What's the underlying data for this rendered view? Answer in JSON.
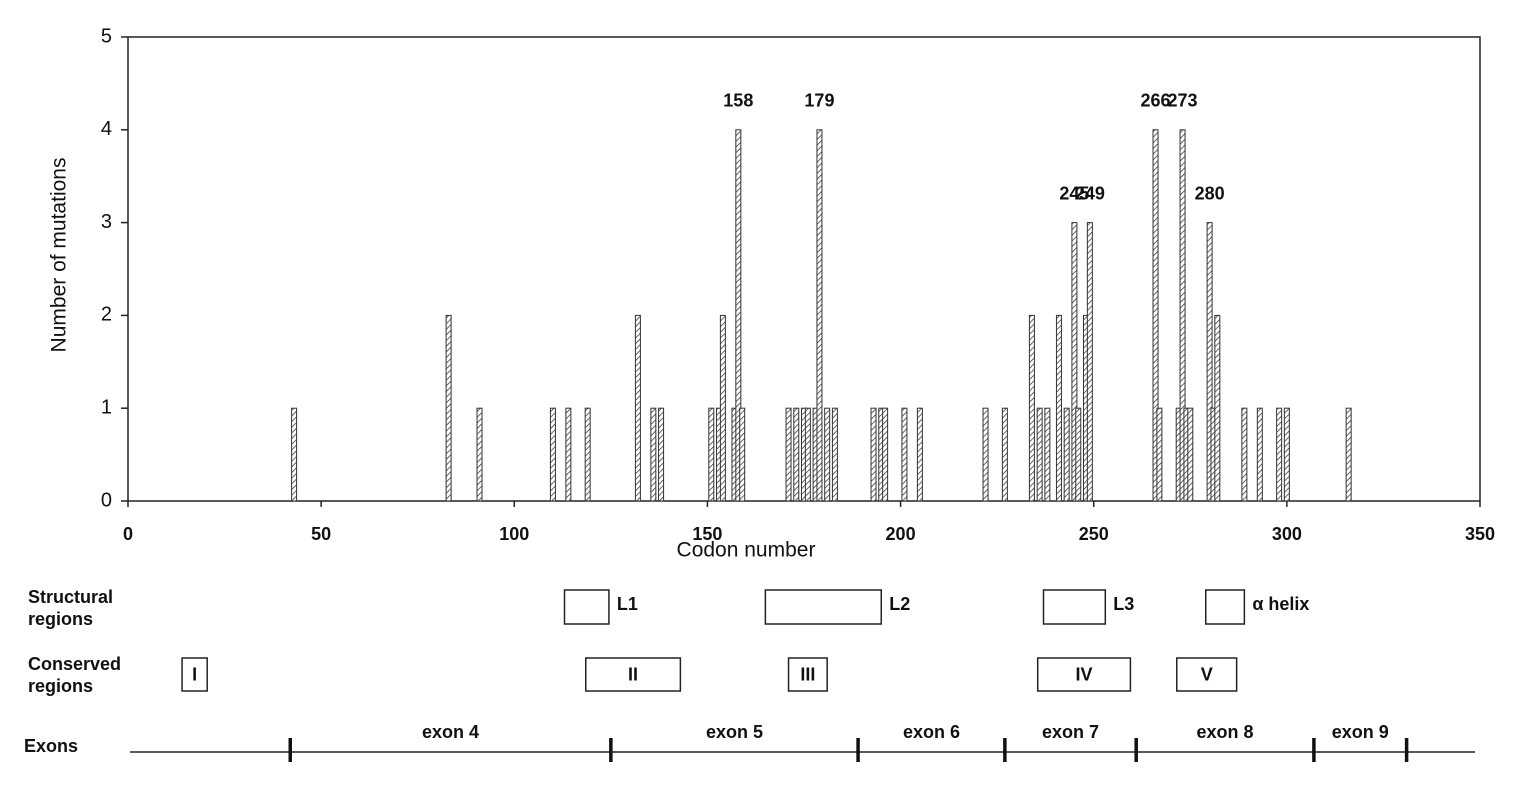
{
  "chart_data": {
    "type": "bar",
    "ylabel": "Number of mutations",
    "xlabel": "Codon number",
    "xlim": [
      0,
      350
    ],
    "xticks": [
      0,
      50,
      100,
      150,
      200,
      250,
      300,
      350
    ],
    "ylim": [
      0,
      5
    ],
    "yticks": [
      0,
      1,
      2,
      3,
      4,
      5
    ],
    "color": "#333333",
    "x": [
      43,
      83,
      91,
      110,
      114,
      119,
      132,
      136,
      138,
      151,
      153,
      154,
      157,
      158,
      159,
      171,
      173,
      175,
      176,
      178,
      179,
      181,
      183,
      193,
      195,
      196,
      201,
      205,
      222,
      227,
      234,
      236,
      238,
      241,
      243,
      245,
      246,
      248,
      249,
      266,
      267,
      272,
      273,
      274,
      275,
      280,
      281,
      282,
      289,
      293,
      298,
      300,
      316
    ],
    "values": [
      1,
      2,
      1,
      1,
      1,
      1,
      2,
      1,
      1,
      1,
      1,
      2,
      1,
      4,
      1,
      1,
      1,
      1,
      1,
      1,
      4,
      1,
      1,
      1,
      1,
      1,
      1,
      1,
      1,
      1,
      2,
      1,
      1,
      2,
      1,
      3,
      1,
      2,
      3,
      4,
      1,
      1,
      4,
      1,
      1,
      3,
      1,
      2,
      1,
      1,
      1,
      1,
      1
    ],
    "annotations": [
      {
        "text": "158",
        "x": 158,
        "y": 4
      },
      {
        "text": "179",
        "x": 179,
        "y": 4
      },
      {
        "text": "245",
        "x": 245,
        "y": 3
      },
      {
        "text": "249",
        "x": 249,
        "y": 3
      },
      {
        "text": "266",
        "x": 266,
        "y": 4
      },
      {
        "text": "273",
        "x": 273,
        "y": 4
      },
      {
        "text": "280",
        "x": 280,
        "y": 3
      }
    ],
    "structural_regions": {
      "title": "Structural regions",
      "regions": [
        {
          "label": "L1",
          "start": 113,
          "end": 124.5
        },
        {
          "label": "L2",
          "start": 165,
          "end": 195
        },
        {
          "label": "L3",
          "start": 237,
          "end": 253
        },
        {
          "label": "α helix",
          "start": 279,
          "end": 289
        }
      ]
    },
    "conserved_regions": {
      "title": "Conserved regions",
      "regions": [
        {
          "label": "I",
          "start": 14,
          "end": 20.5
        },
        {
          "label": "II",
          "start": 118.5,
          "end": 143
        },
        {
          "label": "III",
          "start": 171,
          "end": 181
        },
        {
          "label": "IV",
          "start": 235.5,
          "end": 259.5
        },
        {
          "label": "V",
          "start": 271.5,
          "end": 287
        }
      ]
    },
    "exons": {
      "title": "Exons",
      "items": [
        {
          "label": "exon 4",
          "start": 42,
          "end": 125
        },
        {
          "label": "exon 5",
          "start": 125,
          "end": 189
        },
        {
          "label": "exon 6",
          "start": 189,
          "end": 227
        },
        {
          "label": "exon 7",
          "start": 227,
          "end": 261
        },
        {
          "label": "exon 8",
          "start": 261,
          "end": 307
        },
        {
          "label": "exon 9",
          "start": 307,
          "end": 331
        }
      ]
    }
  }
}
